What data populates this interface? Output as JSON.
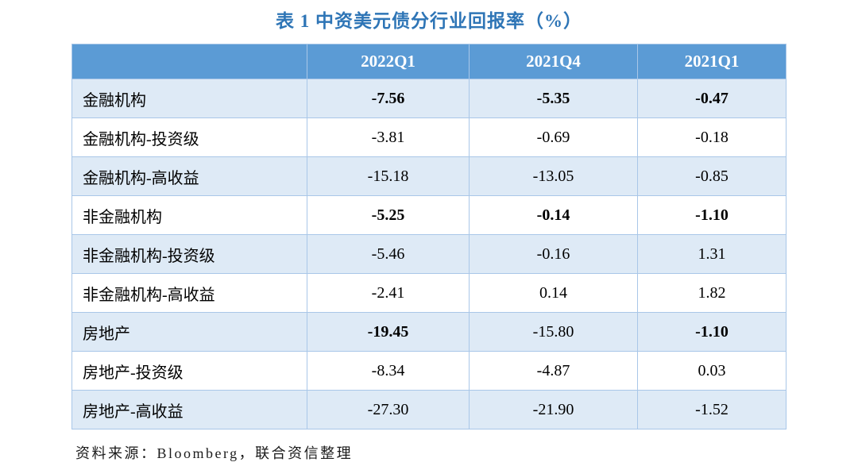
{
  "title": "表 1 中资美元债分行业回报率（%）",
  "source_note": "资料来源：Bloomberg，联合资信整理",
  "colors": {
    "title_blue": "#2E75B6",
    "header_bg": "#5B9BD5",
    "alt_row_bg": "#DEEAF6",
    "border": "#A9C7E8"
  },
  "chart_data": {
    "type": "table",
    "title": "表 1 中资美元债分行业回报率（%）",
    "columns": [
      "",
      "2022Q1",
      "2021Q4",
      "2021Q1"
    ],
    "rows": [
      {
        "label": "金融机构",
        "values": [
          "-7.56",
          "-5.35",
          "-0.47"
        ],
        "bold_values": [
          true,
          true,
          true
        ]
      },
      {
        "label": "金融机构-投资级",
        "values": [
          "-3.81",
          "-0.69",
          "-0.18"
        ],
        "bold_values": [
          false,
          false,
          false
        ]
      },
      {
        "label": "金融机构-高收益",
        "values": [
          "-15.18",
          "-13.05",
          "-0.85"
        ],
        "bold_values": [
          false,
          false,
          false
        ]
      },
      {
        "label": "非金融机构",
        "values": [
          "-5.25",
          "-0.14",
          "-1.10"
        ],
        "bold_values": [
          true,
          true,
          true
        ]
      },
      {
        "label": "非金融机构-投资级",
        "values": [
          "-5.46",
          "-0.16",
          "1.31"
        ],
        "bold_values": [
          false,
          false,
          false
        ]
      },
      {
        "label": "非金融机构-高收益",
        "values": [
          "-2.41",
          "0.14",
          "1.82"
        ],
        "bold_values": [
          false,
          false,
          false
        ]
      },
      {
        "label": "房地产",
        "values": [
          "-19.45",
          "-15.80",
          "-1.10"
        ],
        "bold_values": [
          true,
          false,
          true
        ]
      },
      {
        "label": "房地产-投资级",
        "values": [
          "-8.34",
          "-4.87",
          "0.03"
        ],
        "bold_values": [
          false,
          false,
          false
        ]
      },
      {
        "label": "房地产-高收益",
        "values": [
          "-27.30",
          "-21.90",
          "-1.52"
        ],
        "bold_values": [
          false,
          false,
          false
        ]
      }
    ]
  }
}
